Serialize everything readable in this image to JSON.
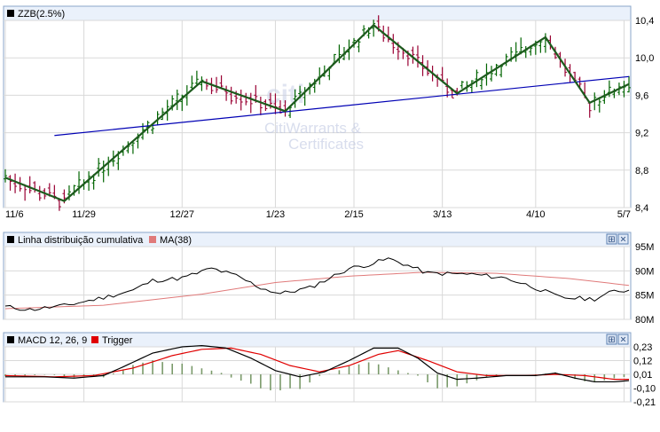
{
  "chart_data": [
    {
      "type": "ohlc",
      "title": "ZZB(2.5%)",
      "legend": [
        {
          "name": "ZZB(2.5%)",
          "color": "#000000"
        }
      ],
      "x_tick_labels": [
        "11/6",
        "11/29",
        "12/27",
        "1/23",
        "2/15",
        "3/13",
        "4/10",
        "5/7"
      ],
      "x_tick_index": [
        0,
        16,
        36,
        55,
        71,
        89,
        108,
        126
      ],
      "ylim": [
        8.4,
        10.4
      ],
      "y_ticks": [
        8.4,
        8.8,
        9.2,
        9.6,
        10.0,
        10.4
      ],
      "y_tick_labels": [
        "8,4",
        "8,8",
        "9,2",
        "9,6",
        "10,0",
        "10,4"
      ],
      "n_points": 128,
      "ohlc_key_points": [
        [
          0,
          8.72
        ],
        [
          12,
          8.47
        ],
        [
          40,
          9.75
        ],
        [
          57,
          9.43
        ],
        [
          75,
          10.35
        ],
        [
          92,
          9.62
        ],
        [
          110,
          10.22
        ],
        [
          119,
          9.52
        ],
        [
          127,
          9.72
        ]
      ],
      "zigzag": [
        [
          0,
          8.72
        ],
        [
          12,
          8.47
        ],
        [
          40,
          9.75
        ],
        [
          57,
          9.43
        ],
        [
          75,
          10.35
        ],
        [
          92,
          9.62
        ],
        [
          110,
          10.22
        ],
        [
          119,
          9.52
        ],
        [
          127,
          9.72
        ]
      ],
      "trendline": [
        [
          10,
          9.17
        ],
        [
          127,
          9.8
        ]
      ],
      "watermark": "CitiWarrants & Certificates"
    },
    {
      "type": "line",
      "title": "Linha distribuição cumulativa",
      "series": [
        {
          "name": "Linha distribuição cumulativa",
          "color": "#000000",
          "points": [
            [
              0,
              82.6
            ],
            [
              5,
              82.0
            ],
            [
              12,
              82.8
            ],
            [
              20,
              84.5
            ],
            [
              26,
              86.0
            ],
            [
              30,
              88.0
            ],
            [
              36,
              88.5
            ],
            [
              42,
              90.5
            ],
            [
              47,
              89.0
            ],
            [
              52,
              86.5
            ],
            [
              56,
              85.3
            ],
            [
              62,
              86.5
            ],
            [
              66,
              88.5
            ],
            [
              70,
              90.5
            ],
            [
              74,
              91.3
            ],
            [
              78,
              92.5
            ],
            [
              81,
              91.5
            ],
            [
              86,
              89.5
            ],
            [
              95,
              89.3
            ],
            [
              102,
              88.5
            ],
            [
              108,
              86.5
            ],
            [
              113,
              84.5
            ],
            [
              120,
              84.2
            ],
            [
              124,
              85.8
            ],
            [
              127,
              86.0
            ]
          ]
        },
        {
          "name": "MA(38)",
          "color": "#e07a7a",
          "points": [
            [
              0,
              82.2
            ],
            [
              20,
              82.9
            ],
            [
              40,
              85.2
            ],
            [
              55,
              87.6
            ],
            [
              70,
              88.9
            ],
            [
              85,
              89.7
            ],
            [
              100,
              89.5
            ],
            [
              115,
              88.4
            ],
            [
              127,
              87.0
            ]
          ]
        }
      ],
      "ylim": [
        80,
        95
      ],
      "y_ticks": [
        80,
        85,
        90,
        95
      ],
      "y_tick_labels": [
        "80M",
        "85M",
        "90M",
        "95M"
      ]
    },
    {
      "type": "line+bar",
      "title": "MACD 12, 26, 9",
      "series": [
        {
          "name": "MACD 12, 26, 9",
          "color": "#000000",
          "points": [
            [
              0,
              -0.01
            ],
            [
              8,
              -0.01
            ],
            [
              14,
              -0.02
            ],
            [
              20,
              0.0
            ],
            [
              24,
              0.07
            ],
            [
              30,
              0.18
            ],
            [
              36,
              0.23
            ],
            [
              40,
              0.24
            ],
            [
              45,
              0.22
            ],
            [
              50,
              0.14
            ],
            [
              55,
              0.04
            ],
            [
              60,
              -0.01
            ],
            [
              65,
              0.03
            ],
            [
              70,
              0.12
            ],
            [
              75,
              0.22
            ],
            [
              80,
              0.22
            ],
            [
              84,
              0.14
            ],
            [
              88,
              0.02
            ],
            [
              92,
              -0.03
            ],
            [
              96,
              -0.02
            ],
            [
              102,
              0.0
            ],
            [
              108,
              0.0
            ],
            [
              112,
              0.02
            ],
            [
              116,
              -0.02
            ],
            [
              120,
              -0.05
            ],
            [
              124,
              -0.05
            ],
            [
              127,
              -0.04
            ]
          ]
        },
        {
          "name": "Trigger",
          "color": "#e00000",
          "points": [
            [
              0,
              0.0
            ],
            [
              10,
              -0.01
            ],
            [
              18,
              0.0
            ],
            [
              26,
              0.06
            ],
            [
              34,
              0.16
            ],
            [
              40,
              0.21
            ],
            [
              46,
              0.22
            ],
            [
              52,
              0.17
            ],
            [
              58,
              0.08
            ],
            [
              64,
              0.03
            ],
            [
              70,
              0.08
            ],
            [
              76,
              0.17
            ],
            [
              80,
              0.2
            ],
            [
              86,
              0.12
            ],
            [
              92,
              0.03
            ],
            [
              98,
              0.0
            ],
            [
              106,
              0.0
            ],
            [
              112,
              0.01
            ],
            [
              118,
              0.0
            ],
            [
              124,
              -0.03
            ],
            [
              127,
              -0.03
            ]
          ]
        }
      ],
      "histogram_color": "#7a9a6a",
      "ylim": [
        -0.21,
        0.23
      ],
      "y_ticks": [
        0.23,
        0.12,
        0.01,
        -0.1,
        -0.21
      ],
      "y_tick_labels": [
        "0,23",
        "0,12",
        "0,01",
        "-0,10",
        "-0,21"
      ]
    }
  ],
  "panel_controls": {
    "expand_symbol": "⊞",
    "close_symbol": "×"
  },
  "colors": {
    "up_bar": "#006400",
    "down_bar": "#990033",
    "zigzag": "#1d5a1d",
    "trendline": "#0000b4",
    "grid": "#d9d9d9",
    "header": "#eaf1fb"
  }
}
